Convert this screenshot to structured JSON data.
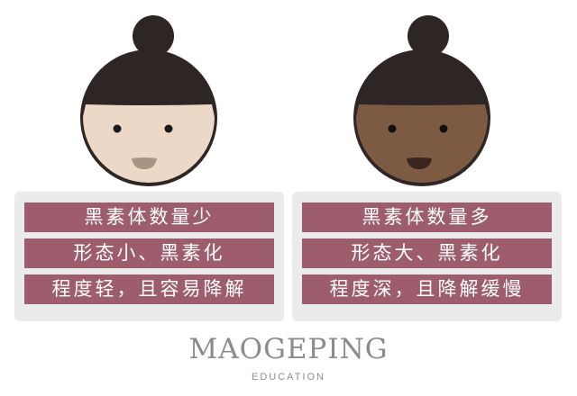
{
  "faces": {
    "light": {
      "skin_color": "#ecd8c6",
      "hair_color": "#2e2625",
      "mouth_color": "#a89487"
    },
    "dark": {
      "skin_color": "#7d5b43",
      "hair_color": "#2e2625",
      "mouth_color": "#3a2420"
    }
  },
  "cards": {
    "left": [
      "黑素体数量少",
      "形态小、黑素化",
      "程度轻，且容易降解"
    ],
    "right": [
      "黑素体数量多",
      "形态大、黑素化",
      "程度深，且降解缓慢"
    ]
  },
  "colors": {
    "bar": "#9d5d6c",
    "card_background": "#ebebeb",
    "brand_text": "#8b8b8b"
  },
  "brand": {
    "name": "MAOGEPING",
    "sub": "EDUCATION"
  }
}
